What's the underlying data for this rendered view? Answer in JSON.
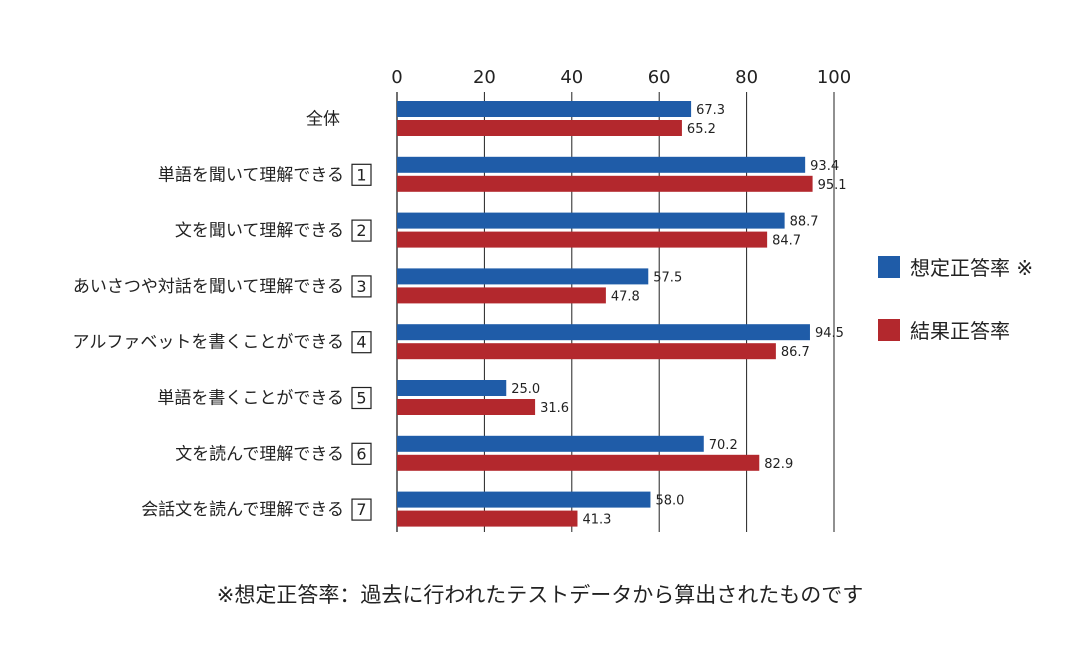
{
  "chart_data": {
    "type": "bar",
    "orientation": "horizontal",
    "categories": [
      "全体",
      "単語を聞いて理解できる",
      "文を聞いて理解できる",
      "あいさつや対話を聞いて理解できる",
      "アルファベットを書くことができる",
      "単語を書くことができる",
      "文を読んで理解できる",
      "会話文を読んで理解できる"
    ],
    "category_numbers": [
      "",
      "1",
      "2",
      "3",
      "4",
      "5",
      "6",
      "7"
    ],
    "series": [
      {
        "name": "想定正答率 ※",
        "color": "#1f5ca8",
        "values": [
          67.3,
          93.4,
          88.7,
          57.5,
          94.5,
          25.0,
          70.2,
          58.0
        ]
      },
      {
        "name": "結果正答率",
        "color": "#b3282d",
        "values": [
          65.2,
          95.1,
          84.7,
          47.8,
          86.7,
          31.6,
          82.9,
          41.3
        ]
      }
    ],
    "xlim": [
      0,
      100
    ],
    "xticks": [
      "0",
      "20",
      "40",
      "60",
      "80",
      "100"
    ],
    "grid": true,
    "legend_position": "right",
    "value_labels": true
  },
  "footnote": "※想定正答率：過去に行われたテストデータから算出されたものです"
}
